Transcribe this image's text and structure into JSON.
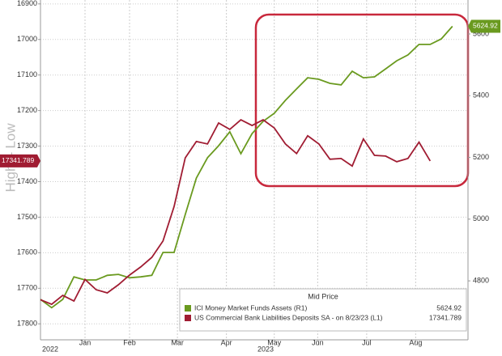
{
  "chart_data": {
    "type": "line",
    "y_label": "High – Low",
    "year_labels": [
      "2022",
      "2023"
    ],
    "legend_title": "Mid Price",
    "x": [
      0,
      1,
      2,
      3,
      4,
      5,
      6,
      7,
      8,
      9,
      10,
      11,
      12,
      13,
      14,
      15,
      16,
      17,
      18,
      19,
      20,
      21,
      22,
      23,
      24,
      25,
      26,
      27,
      28,
      29,
      30,
      31,
      32,
      33,
      34,
      35,
      36,
      37
    ],
    "xlim": [
      0,
      38.4
    ],
    "xticks": [
      {
        "value": 4,
        "label": "Jan"
      },
      {
        "value": 8,
        "label": "Feb"
      },
      {
        "value": 12.3,
        "label": "Mar"
      },
      {
        "value": 16.7,
        "label": "Apr"
      },
      {
        "value": 21,
        "label": "May"
      },
      {
        "value": 24.9,
        "label": "Jun"
      },
      {
        "value": 29.3,
        "label": "Jul"
      },
      {
        "value": 33.7,
        "label": "Aug"
      }
    ],
    "ylim": [
      16889,
      17845
    ],
    "y_inverted": true,
    "yticks": [
      16900,
      17000,
      17100,
      17200,
      17300,
      17400,
      17500,
      17600,
      17700,
      17800
    ],
    "y2lim": [
      4609,
      5710
    ],
    "y2ticks": [
      4800,
      5000,
      5200,
      5400,
      5600
    ],
    "grid": true,
    "series": [
      {
        "name": "ICI Money Market Funds Assets  (R1)",
        "color": "#6a9a1f",
        "axis": "y2",
        "values": [
          4740,
          4713,
          4740,
          4813,
          4803,
          4803,
          4818,
          4821,
          4810,
          4813,
          4818,
          4892,
          4892,
          5015,
          5133,
          5199,
          5238,
          5283,
          5212,
          5277,
          5317,
          5343,
          5385,
          5422,
          5458,
          5453,
          5440,
          5435,
          5479,
          5458,
          5461,
          5487,
          5513,
          5532,
          5566,
          5566,
          5584,
          5624.92
        ]
      },
      {
        "name": "US Commercial Bank Liabilities Deposits SA -  on 8/23/23  (L1)",
        "color": "#a01c32",
        "axis": "y",
        "values": [
          17732,
          17745,
          17720,
          17736,
          17675,
          17704,
          17713,
          17690,
          17663,
          17640,
          17613,
          17567,
          17470,
          17333,
          17287,
          17294,
          17235,
          17253,
          17226,
          17242,
          17226,
          17249,
          17294,
          17321,
          17271,
          17294,
          17337,
          17335,
          17356,
          17280,
          17326,
          17328,
          17344,
          17335,
          17289,
          17341.789,
          null,
          null
        ]
      }
    ]
  }
}
